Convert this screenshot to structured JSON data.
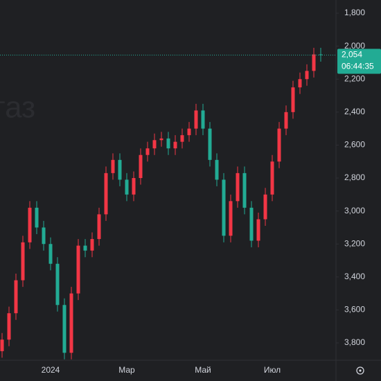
{
  "chart_data": {
    "type": "candlestick",
    "watermark": "газ",
    "categories": [
      null,
      null,
      null,
      null,
      null,
      null,
      null,
      "2024",
      null,
      null,
      null,
      null,
      null,
      null,
      null,
      null,
      null,
      null,
      "Мар",
      null,
      null,
      null,
      null,
      null,
      null,
      null,
      null,
      null,
      null,
      "Май",
      null,
      null,
      null,
      null,
      null,
      null,
      null,
      null,
      null,
      "Июл",
      null,
      null,
      null,
      null,
      null,
      null,
      null
    ],
    "open": [
      3850,
      3780,
      3620,
      3420,
      3190,
      2980,
      3100,
      3200,
      3320,
      3570,
      3860,
      3500,
      3210,
      3240,
      3170,
      3020,
      2770,
      2690,
      2810,
      2900,
      2800,
      2660,
      2620,
      2570,
      2560,
      2620,
      2580,
      2540,
      2500,
      2390,
      2500,
      2690,
      2810,
      3150,
      2940,
      2770,
      2980,
      3180,
      3050,
      2900,
      2700,
      2500,
      2400,
      2250,
      2200,
      2150,
      2050
    ],
    "high": [
      3890,
      3820,
      3660,
      3460,
      3230,
      3140,
      3240,
      3360,
      3610,
      3900,
      3900,
      3540,
      3280,
      3280,
      3210,
      3060,
      2810,
      2850,
      2940,
      2940,
      2840,
      2700,
      2660,
      2610,
      2660,
      2660,
      2620,
      2580,
      2540,
      2540,
      2730,
      2850,
      3190,
      3190,
      2980,
      3020,
      3220,
      3220,
      3090,
      2940,
      2740,
      2540,
      2440,
      2290,
      2240,
      2190,
      2094
    ],
    "low": [
      3740,
      3580,
      3380,
      3150,
      2940,
      2940,
      3060,
      3160,
      3280,
      3530,
      3460,
      3170,
      3170,
      3130,
      2980,
      2730,
      2650,
      2650,
      2770,
      2760,
      2620,
      2580,
      2530,
      2520,
      2520,
      2540,
      2500,
      2460,
      2350,
      2350,
      2460,
      2650,
      2770,
      2900,
      2730,
      2730,
      2940,
      3010,
      2860,
      2660,
      2460,
      2360,
      2210,
      2160,
      2110,
      2010,
      2010
    ],
    "close": [
      3780,
      3620,
      3420,
      3190,
      2980,
      3100,
      3200,
      3320,
      3570,
      3860,
      3500,
      3210,
      3240,
      3170,
      3020,
      2770,
      2690,
      2810,
      2900,
      2800,
      2660,
      2620,
      2570,
      2560,
      2620,
      2580,
      2540,
      2500,
      2390,
      2500,
      2690,
      2810,
      3150,
      2940,
      2770,
      2980,
      3180,
      3050,
      2900,
      2700,
      2500,
      2400,
      2250,
      2200,
      2150,
      2050,
      2054
    ],
    "up_color": "#22ab94",
    "down_color": "#f23645",
    "ylim": [
      3905,
      1720
    ],
    "yticks": [
      {
        "value": 1800,
        "label": "1,800"
      },
      {
        "value": 2000,
        "label": "2,000"
      },
      {
        "value": 2200,
        "label": "2,200"
      },
      {
        "value": 2400,
        "label": "2,400"
      },
      {
        "value": 2600,
        "label": "2,600"
      },
      {
        "value": 2800,
        "label": "2,800"
      },
      {
        "value": 3000,
        "label": "3,000"
      },
      {
        "value": 3200,
        "label": "3,200"
      },
      {
        "value": 3400,
        "label": "3,400"
      },
      {
        "value": 3600,
        "label": "3,600"
      },
      {
        "value": 3800,
        "label": "3,800"
      }
    ],
    "last_price": {
      "value": 2054,
      "label": "2,054",
      "countdown": "06:44:35",
      "color": "#22ab94"
    }
  }
}
